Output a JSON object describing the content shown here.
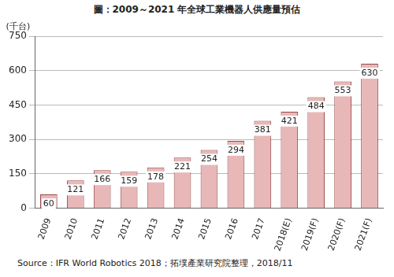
{
  "chart_data": {
    "type": "bar",
    "title": "圖：2009～2021 年全球工業機器人供應量預估",
    "ylabel": "(千台)",
    "source": "Source：IFR World Robotics 2018；拓墣產業研究院整理，2018/11",
    "categories": [
      "2009",
      "2010",
      "2011",
      "2012",
      "2013",
      "2014",
      "2015",
      "2016",
      "2017",
      "2018(E)",
      "2019(F)",
      "2020(F)",
      "2021(F)"
    ],
    "values": [
      60,
      121,
      166,
      159,
      178,
      221,
      254,
      294,
      381,
      421,
      484,
      553,
      630
    ],
    "color": "#e8b8b8",
    "ylim": [
      0,
      750
    ],
    "yticks": [
      0,
      150,
      300,
      450,
      600,
      750
    ],
    "grid": true,
    "data_labels": true
  }
}
